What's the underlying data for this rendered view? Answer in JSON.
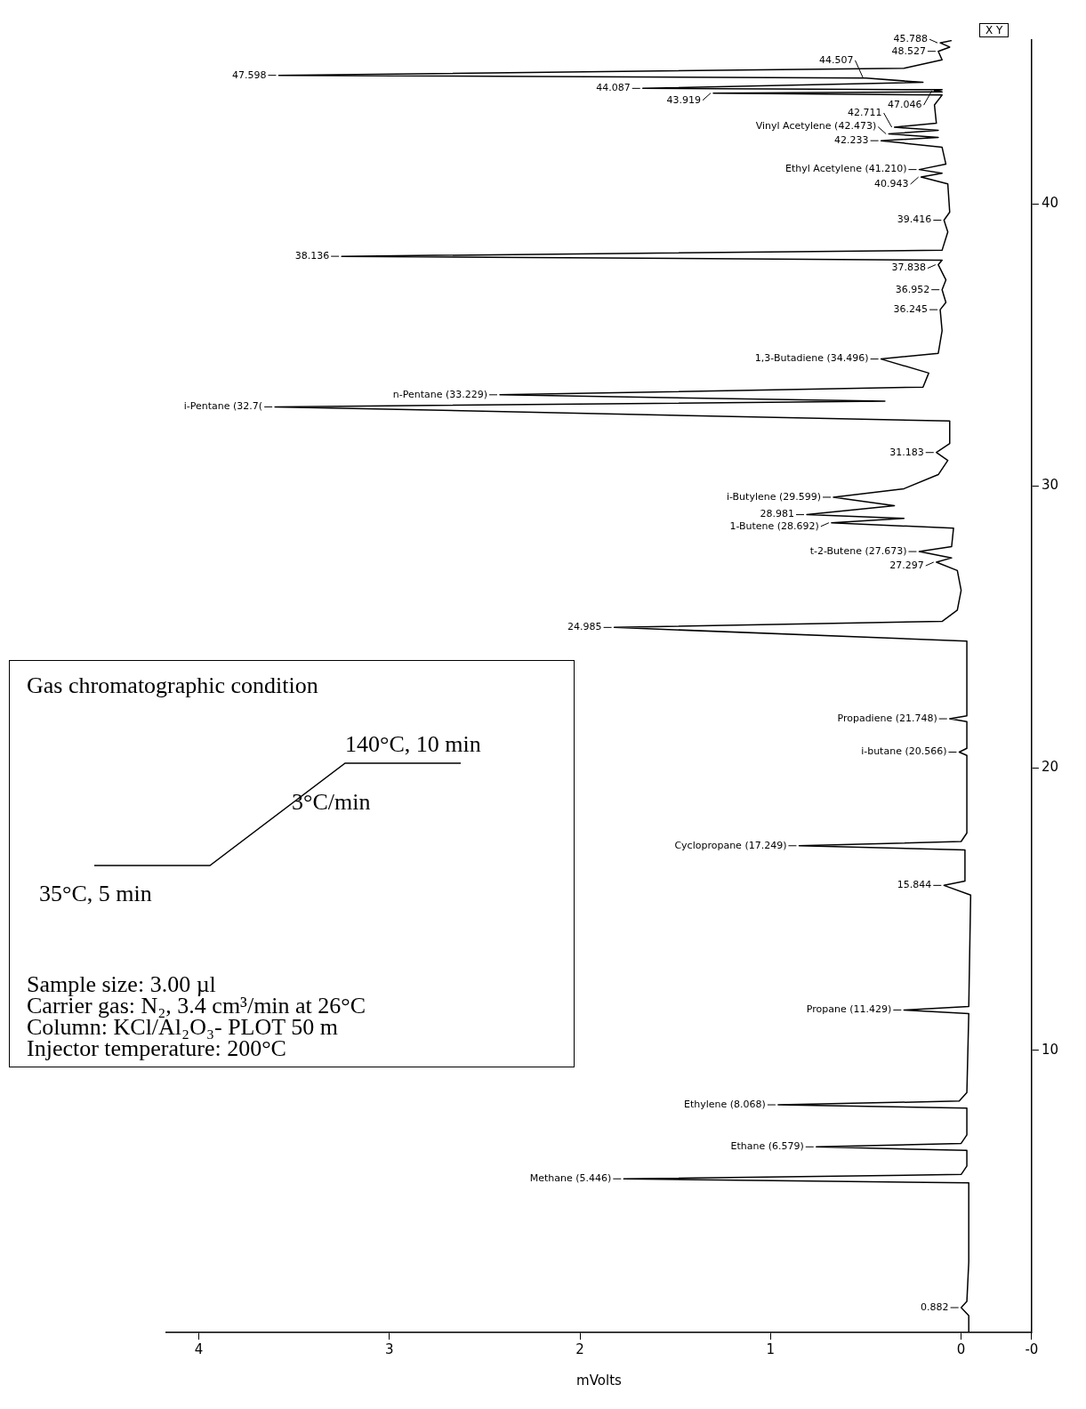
{
  "chart_data": {
    "type": "line",
    "orientation": "horizontal",
    "xlabel": "mVolts",
    "color": "#000000",
    "xlim": [
      4.17,
      -0.37
    ],
    "xticks": [
      4,
      3,
      2,
      1,
      0,
      {
        "value": -0.37,
        "label": "-0"
      }
    ],
    "ylim": [
      0,
      45.8
    ],
    "yticks": [
      10,
      20,
      30,
      40
    ],
    "x": [
      0,
      0.6,
      0.882,
      1.1,
      2.5,
      4,
      5.3,
      5.446,
      5.6,
      5.9,
      6.45,
      6.579,
      6.7,
      7.0,
      7.95,
      8.068,
      8.2,
      8.5,
      11.3,
      11.429,
      11.55,
      15.5,
      15.844,
      16.0,
      17.1,
      17.249,
      17.4,
      17.7,
      20.45,
      20.566,
      20.7,
      21.65,
      21.748,
      21.85,
      24.5,
      24.985,
      25.2,
      25.6,
      26.3,
      27.0,
      27.297,
      27.45,
      27.673,
      27.85,
      28.5,
      28.692,
      28.85,
      28.981,
      29.3,
      29.599,
      29.9,
      30.4,
      30.9,
      31.183,
      31.5,
      32.3,
      32.8,
      33.0,
      33.229,
      33.5,
      34.0,
      34.496,
      34.7,
      35.5,
      36.245,
      36.5,
      36.952,
      37.3,
      37.838,
      38.0,
      38.136,
      38.35,
      39.0,
      39.416,
      39.7,
      40.7,
      40.943,
      41.08,
      41.21,
      41.4,
      42.0,
      42.233,
      42.35,
      42.473,
      42.6,
      42.711,
      42.85,
      43.5,
      43.85,
      43.919,
      43.96,
      44.0,
      44.04,
      44.087,
      44.3,
      44.45,
      44.55,
      44.8,
      45.1,
      45.4,
      45.55,
      45.7,
      45.78
    ],
    "values": [
      -0.04,
      -0.04,
      0.0,
      -0.03,
      -0.04,
      -0.04,
      -0.04,
      1.77,
      0.0,
      -0.03,
      -0.03,
      0.76,
      0.0,
      -0.03,
      -0.03,
      0.96,
      0.01,
      -0.03,
      -0.04,
      0.3,
      -0.04,
      -0.05,
      0.09,
      -0.02,
      -0.02,
      0.85,
      0.0,
      -0.03,
      -0.03,
      0.01,
      -0.03,
      -0.03,
      0.06,
      -0.03,
      -0.03,
      1.82,
      0.1,
      0.02,
      0.0,
      0.02,
      0.13,
      0.05,
      0.22,
      0.05,
      0.04,
      0.68,
      0.3,
      0.81,
      0.35,
      0.67,
      0.3,
      0.12,
      0.07,
      0.13,
      0.06,
      0.06,
      3.6,
      0.4,
      2.42,
      0.2,
      0.17,
      0.42,
      0.12,
      0.1,
      0.11,
      0.08,
      0.1,
      0.08,
      0.12,
      0.1,
      3.25,
      0.1,
      0.07,
      0.09,
      0.06,
      0.07,
      0.21,
      0.1,
      0.22,
      0.08,
      0.1,
      0.42,
      0.12,
      0.38,
      0.12,
      0.35,
      0.13,
      0.14,
      0.1,
      1.3,
      0.1,
      0.14,
      0.1,
      1.67,
      0.2,
      0.5,
      3.58,
      0.3,
      0.1,
      0.12,
      0.06,
      0.11,
      0.05
    ],
    "annotations": [
      "Gas chromatographic condition",
      "140°C, 10 min",
      "3°C/min",
      "35°C, 5 min",
      "Sample size: 3.00 µl",
      "Carrier gas: N₂, 3.4 cm³/min at 26°C",
      "Column: KCl/Al₂O₃- PLOT 50 m",
      "Injector temperature: 200°C",
      "X Y",
      {
        "text": "0.882",
        "x": 0.0,
        "y": 0.882
      },
      {
        "text": "Methane (5.446)",
        "x": 1.77,
        "y": 5.446
      },
      {
        "text": "Ethane (6.579)",
        "x": 0.76,
        "y": 6.579
      },
      {
        "text": "Ethylene (8.068)",
        "x": 0.96,
        "y": 8.068
      },
      {
        "text": "Propane (11.429)",
        "x": 0.3,
        "y": 11.429
      },
      {
        "text": "15.844",
        "x": 0.09,
        "y": 15.844
      },
      {
        "text": "Cyclopropane (17.249)",
        "x": 0.85,
        "y": 17.249
      },
      {
        "text": "i-butane (20.566)",
        "x": 0.01,
        "y": 20.566
      },
      {
        "text": "Propadiene (21.748)",
        "x": 0.06,
        "y": 21.748
      },
      {
        "text": "24.985",
        "x": 1.82,
        "y": 24.985
      },
      {
        "text": "27.297",
        "x": 0.13,
        "y": 27.297
      },
      {
        "text": "t-2-Butene (27.673)",
        "x": 0.22,
        "y": 27.673
      },
      {
        "text": "1-Butene (28.692)",
        "x": 0.68,
        "y": 28.692
      },
      {
        "text": "28.981",
        "x": 0.81,
        "y": 28.981
      },
      {
        "text": "i-Butylene (29.599)",
        "x": 0.67,
        "y": 29.599
      },
      {
        "text": "31.183",
        "x": 0.13,
        "y": 31.183
      },
      {
        "text": "i-Pentane (32.7(",
        "x": 3.6,
        "y": 32.8
      },
      {
        "text": "n-Pentane (33.229)",
        "x": 2.42,
        "y": 33.229
      },
      {
        "text": "1,3-Butadiene (34.496)",
        "x": 0.42,
        "y": 34.496
      },
      {
        "text": "36.245",
        "x": 0.11,
        "y": 36.245
      },
      {
        "text": "36.952",
        "x": 0.1,
        "y": 36.952
      },
      {
        "text": "37.838",
        "x": 0.12,
        "y": 37.838
      },
      {
        "text": "38.136",
        "x": 3.25,
        "y": 38.136
      },
      {
        "text": "39.416",
        "x": 0.09,
        "y": 39.416
      },
      {
        "text": "40.943",
        "x": 0.21,
        "y": 40.943
      },
      {
        "text": "Ethyl Acetylene (41.210)",
        "x": 0.22,
        "y": 41.21
      },
      {
        "text": "42.233",
        "x": 0.42,
        "y": 42.233
      },
      {
        "text": "Vinyl Acetylene (42.473)",
        "x": 0.38,
        "y": 42.473
      },
      {
        "text": "42.711",
        "x": 0.35,
        "y": 42.711
      },
      {
        "text": "43.919",
        "x": 1.3,
        "y": 43.919
      },
      {
        "text": "47.046",
        "x": 0.14,
        "y": 44.0
      },
      {
        "text": "44.087",
        "x": 1.67,
        "y": 44.087
      },
      {
        "text": "44.507",
        "x": 0.5,
        "y": 44.45
      },
      {
        "text": "47.598",
        "x": 3.58,
        "y": 44.55
      },
      {
        "text": "48.527",
        "x": 0.12,
        "y": 45.4
      },
      {
        "text": "45.788",
        "x": 0.11,
        "y": 45.7
      }
    ]
  }
}
